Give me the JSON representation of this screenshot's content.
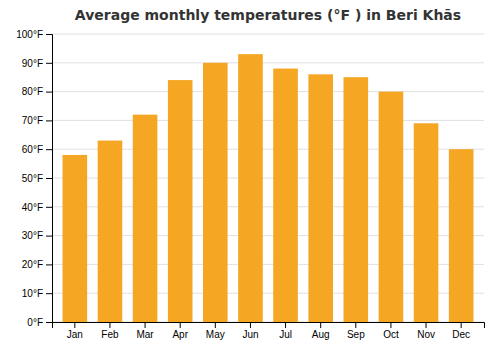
{
  "chart_data": {
    "type": "bar",
    "title": "Average monthly temperatures (°F ) in Beri Khās",
    "categories": [
      "Jan",
      "Feb",
      "Mar",
      "Apr",
      "May",
      "Jun",
      "Jul",
      "Aug",
      "Sep",
      "Oct",
      "Nov",
      "Dec"
    ],
    "values": [
      58,
      63,
      72,
      84,
      90,
      93,
      88,
      86,
      85,
      80,
      69,
      60
    ],
    "color": "#F5A623",
    "ylim": [
      0,
      100
    ],
    "yticks": [
      {
        "value": 0,
        "label": "0°F"
      },
      {
        "value": 10,
        "label": "10°F"
      },
      {
        "value": 20,
        "label": "20°F"
      },
      {
        "value": 30,
        "label": "30°F"
      },
      {
        "value": 40,
        "label": "40°F"
      },
      {
        "value": 50,
        "label": "50°F"
      },
      {
        "value": 60,
        "label": "60°F"
      },
      {
        "value": 70,
        "label": "70°F"
      },
      {
        "value": 80,
        "label": "80°F"
      },
      {
        "value": 90,
        "label": "90°F"
      },
      {
        "value": 100,
        "label": "100°F"
      }
    ],
    "grid": true
  }
}
